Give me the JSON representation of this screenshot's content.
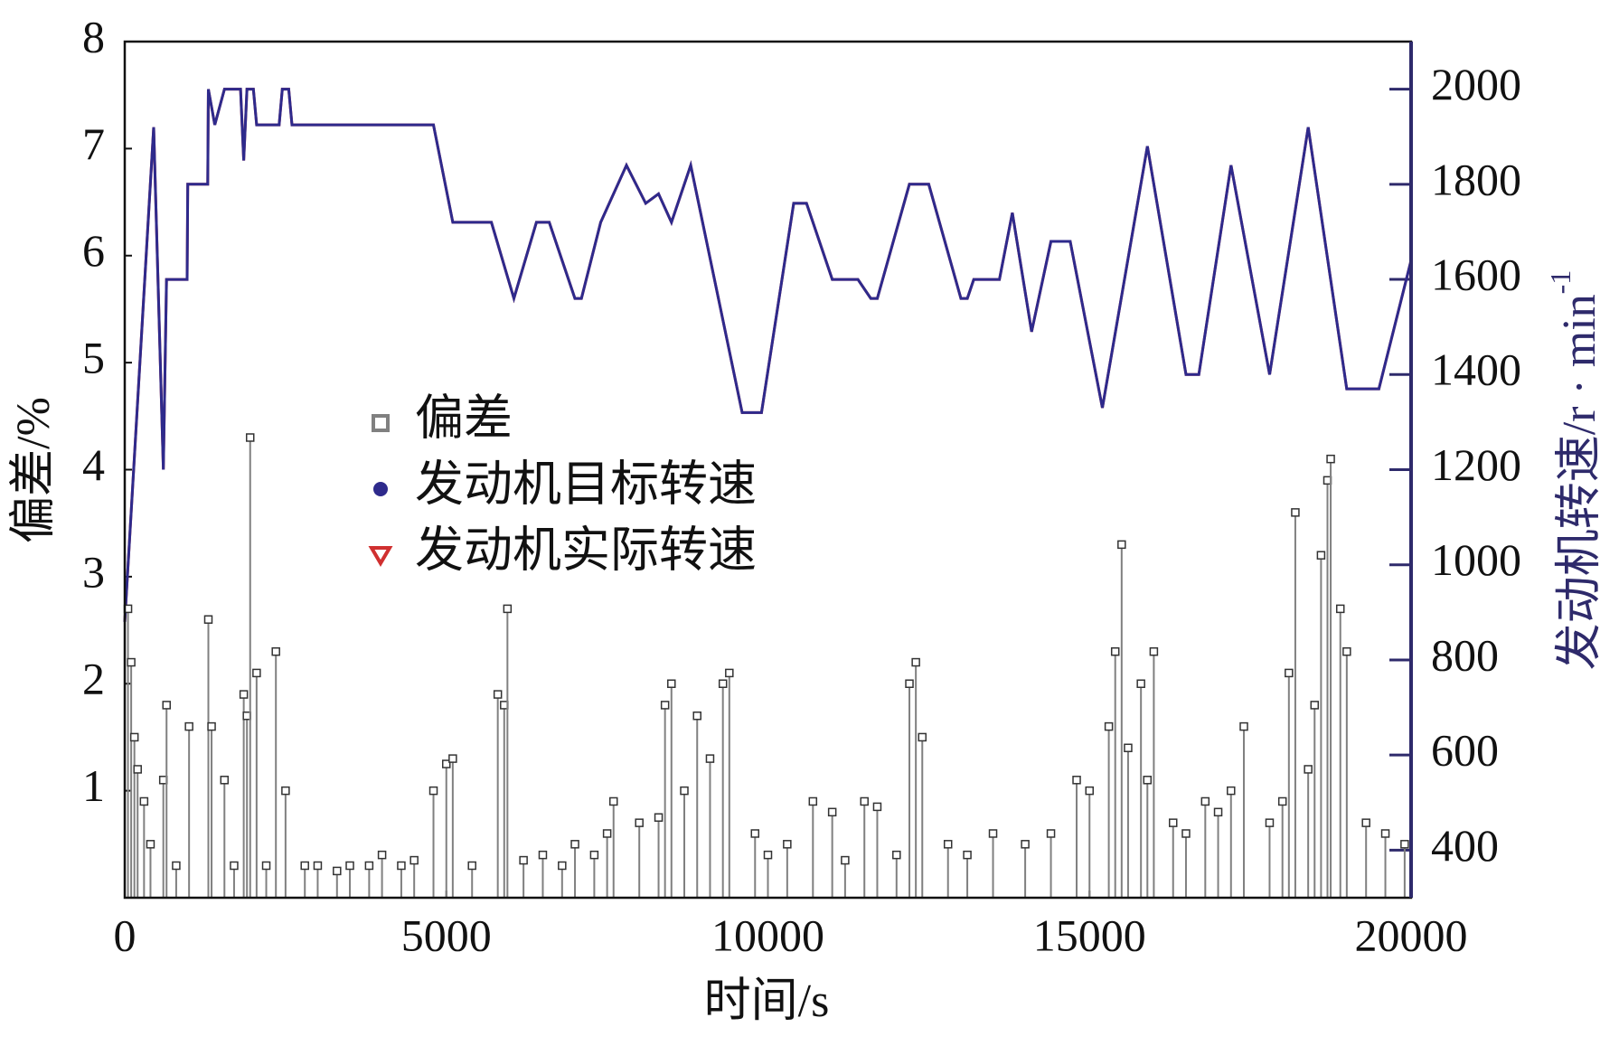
{
  "chart_data": {
    "type": "combo",
    "xlabel": "时间/s",
    "ylabel": "偏差/%",
    "y2label": "发动机转速/r · min",
    "y2label_superscript": "-1",
    "xlim": [
      0,
      20000
    ],
    "xticks": [
      0,
      5000,
      10000,
      15000,
      20000
    ],
    "ylim": [
      0,
      8
    ],
    "yticks": [
      1,
      2,
      3,
      4,
      5,
      6,
      7,
      8
    ],
    "y2lim": [
      300,
      2100
    ],
    "y2ticks": [
      400,
      600,
      800,
      1000,
      1200,
      1400,
      1600,
      1800,
      2000
    ],
    "axis_color_y2": "#2e2a6b",
    "series": [
      {
        "name": "偏差",
        "type": "stem",
        "color": "#808080",
        "marker": "square",
        "x": [
          50,
          100,
          150,
          200,
          300,
          400,
          600,
          650,
          800,
          1000,
          1300,
          1350,
          1550,
          1700,
          1850,
          1900,
          1950,
          2050,
          2200,
          2350,
          2500,
          2800,
          3000,
          3300,
          3500,
          3800,
          4000,
          4300,
          4500,
          4800,
          5000,
          5100,
          5400,
          5800,
          5900,
          5950,
          6200,
          6500,
          6800,
          7000,
          7300,
          7500,
          7600,
          8000,
          8300,
          8400,
          8500,
          8700,
          8900,
          9100,
          9300,
          9400,
          9800,
          10000,
          10300,
          10700,
          11000,
          11200,
          11500,
          11700,
          12000,
          12200,
          12300,
          12400,
          12800,
          13100,
          13500,
          14000,
          14400,
          14800,
          15000,
          15300,
          15400,
          15500,
          15600,
          15800,
          15900,
          16000,
          16300,
          16500,
          16800,
          17000,
          17200,
          17400,
          17800,
          18000,
          18100,
          18200,
          18400,
          18500,
          18600,
          18700,
          18750,
          18900,
          19000,
          19300,
          19600,
          19900
        ],
        "values": [
          2.7,
          2.2,
          1.5,
          1.2,
          0.9,
          0.5,
          1.1,
          1.8,
          0.3,
          1.6,
          2.6,
          1.6,
          1.1,
          0.3,
          1.9,
          1.7,
          4.3,
          2.1,
          0.3,
          2.3,
          1.0,
          0.3,
          0.3,
          0.25,
          0.3,
          0.3,
          0.4,
          0.3,
          0.35,
          1.0,
          1.25,
          1.3,
          0.3,
          1.9,
          1.8,
          2.7,
          0.35,
          0.4,
          0.3,
          0.5,
          0.4,
          0.6,
          0.9,
          0.7,
          0.75,
          1.8,
          2.0,
          1.0,
          1.7,
          1.3,
          2.0,
          2.1,
          0.6,
          0.4,
          0.5,
          0.9,
          0.8,
          0.35,
          0.9,
          0.85,
          0.4,
          2.0,
          2.2,
          1.5,
          0.5,
          0.4,
          0.6,
          0.5,
          0.6,
          1.1,
          1.0,
          1.6,
          2.3,
          3.3,
          1.4,
          2.0,
          1.1,
          2.3,
          0.7,
          0.6,
          0.9,
          0.8,
          1.0,
          1.6,
          0.7,
          0.9,
          2.1,
          3.6,
          1.2,
          1.8,
          3.2,
          3.9,
          4.1,
          2.7,
          2.3,
          0.7,
          0.6,
          0.5
        ]
      },
      {
        "name": "发动机目标转速",
        "type": "line",
        "axis": "y2",
        "color": "#2e2a8c",
        "marker": "circle",
        "x": [
          0,
          450,
          600,
          650,
          970,
          980,
          1290,
          1300,
          1400,
          1550,
          1800,
          1850,
          1900,
          2000,
          2050,
          2400,
          2450,
          2550,
          2600,
          4800,
          5100,
          5700,
          6050,
          6400,
          6600,
          7000,
          7100,
          7400,
          7800,
          8100,
          8300,
          8500,
          8800,
          9600,
          9900,
          10400,
          10600,
          11000,
          11400,
          11600,
          11700,
          12200,
          12500,
          13000,
          13100,
          13200,
          13600,
          13800,
          14100,
          14400,
          14700,
          15200,
          15900,
          16500,
          16700,
          17200,
          17800,
          18400,
          19000,
          19500,
          20000
        ],
        "values": [
          880,
          1920,
          1200,
          1600,
          1600,
          1800,
          1800,
          2000,
          1925,
          2000,
          2000,
          1850,
          2000,
          2000,
          1925,
          1925,
          2000,
          2000,
          1925,
          1925,
          1720,
          1720,
          1560,
          1720,
          1720,
          1560,
          1560,
          1720,
          1840,
          1760,
          1780,
          1720,
          1840,
          1320,
          1320,
          1760,
          1760,
          1600,
          1600,
          1560,
          1560,
          1800,
          1800,
          1560,
          1560,
          1600,
          1600,
          1740,
          1490,
          1680,
          1680,
          1330,
          1880,
          1400,
          1400,
          1840,
          1400,
          1920,
          1370,
          1370,
          1640
        ]
      },
      {
        "name": "发动机实际转速",
        "type": "line",
        "axis": "y2",
        "color": "#d03030",
        "marker": "triangle",
        "x": [
          0,
          450,
          600,
          650,
          970,
          980,
          1290,
          1300,
          1400,
          1550,
          1800,
          1850,
          1900,
          2000,
          2050,
          2400,
          2450,
          2550,
          2600,
          4800,
          5100,
          5700,
          6050,
          6400,
          6600,
          7000,
          7100,
          7400,
          7800,
          8100,
          8300,
          8500,
          8800,
          9600,
          9900,
          10400,
          10600,
          11000,
          11400,
          11600,
          11700,
          12200,
          12500,
          13000,
          13100,
          13200,
          13600,
          13800,
          14100,
          14400,
          14700,
          15200,
          15900,
          16500,
          16700,
          17200,
          17800,
          18400,
          19000,
          19500,
          20000
        ],
        "values": [
          880,
          1920,
          1200,
          1600,
          1600,
          1800,
          1800,
          2000,
          1925,
          2000,
          2000,
          1850,
          2000,
          2000,
          1925,
          1925,
          2000,
          2000,
          1925,
          1925,
          1720,
          1720,
          1560,
          1720,
          1720,
          1560,
          1560,
          1720,
          1840,
          1760,
          1780,
          1720,
          1840,
          1320,
          1320,
          1760,
          1760,
          1600,
          1600,
          1560,
          1560,
          1800,
          1800,
          1560,
          1560,
          1600,
          1600,
          1740,
          1490,
          1680,
          1680,
          1330,
          1880,
          1400,
          1400,
          1840,
          1400,
          1920,
          1370,
          1370,
          1640
        ]
      }
    ]
  }
}
